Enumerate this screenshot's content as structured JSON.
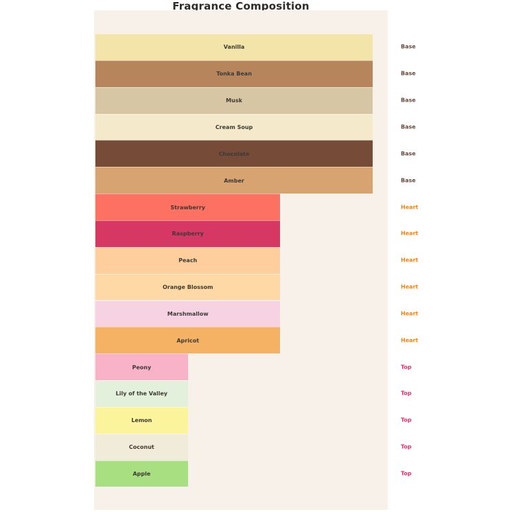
{
  "chart_data": {
    "type": "bar",
    "orientation": "horizontal",
    "title": "Fragrance Composition",
    "xlabel": "",
    "ylabel": "",
    "legend": false,
    "grid": false,
    "value_scale": "relative bar length: Base = 3, Heart = 2, Top = 1",
    "plot_background": "#f7f1e9",
    "page_background": "#ffffff",
    "bar_label_color": "#3d3a36",
    "title_color": "#2f2b28",
    "group_label_colors": {
      "Base": "#6b4839",
      "Heart": "#f8820e",
      "Top": "#e82f6c"
    },
    "groups": [
      "Base",
      "Heart",
      "Top"
    ],
    "bars": [
      {
        "label": "Vanilla",
        "group": "Base",
        "value": 3,
        "color": "#f3e5a9"
      },
      {
        "label": "Tonka Bean",
        "group": "Base",
        "value": 3,
        "color": "#b7855c"
      },
      {
        "label": "Musk",
        "group": "Base",
        "value": 3,
        "color": "#d7c6a3"
      },
      {
        "label": "Cream Soup",
        "group": "Base",
        "value": 3,
        "color": "#f4e9ca"
      },
      {
        "label": "Chocolate",
        "group": "Base",
        "value": 3,
        "color": "#764c39"
      },
      {
        "label": "Amber",
        "group": "Base",
        "value": 3,
        "color": "#d7a471"
      },
      {
        "label": "Strawberry",
        "group": "Heart",
        "value": 2,
        "color": "#fc7162"
      },
      {
        "label": "Raspberry",
        "group": "Heart",
        "value": 2,
        "color": "#d63863"
      },
      {
        "label": "Peach",
        "group": "Heart",
        "value": 2,
        "color": "#fecf9d"
      },
      {
        "label": "Orange Blossom",
        "group": "Heart",
        "value": 2,
        "color": "#fed9a5"
      },
      {
        "label": "Marshmallow",
        "group": "Heart",
        "value": 2,
        "color": "#f6d2e2"
      },
      {
        "label": "Apricot",
        "group": "Heart",
        "value": 2,
        "color": "#f5b265"
      },
      {
        "label": "Peony",
        "group": "Top",
        "value": 1,
        "color": "#f8b3c9"
      },
      {
        "label": "Lily of the Valley",
        "group": "Top",
        "value": 1,
        "color": "#e3f0db"
      },
      {
        "label": "Lemon",
        "group": "Top",
        "value": 1,
        "color": "#fbf49c"
      },
      {
        "label": "Coconut",
        "group": "Top",
        "value": 1,
        "color": "#f1ebd9"
      },
      {
        "label": "Apple",
        "group": "Top",
        "value": 1,
        "color": "#a8df80"
      }
    ]
  }
}
